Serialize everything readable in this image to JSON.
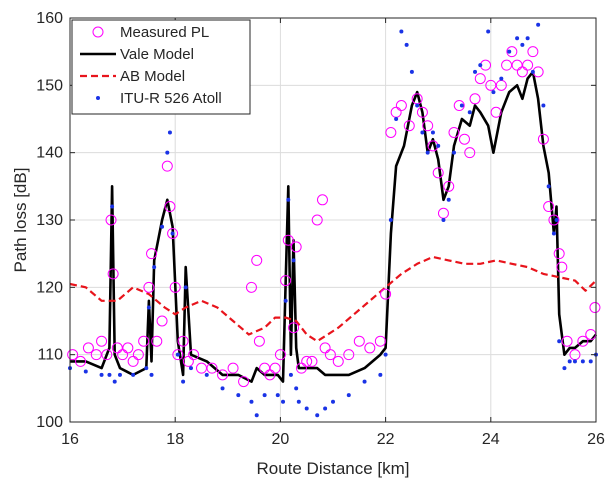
{
  "chart_data": {
    "type": "line",
    "xlabel": "Route Distance [km]",
    "ylabel": "Path loss [dB]",
    "xlim": [
      16,
      26
    ],
    "ylim": [
      100,
      160
    ],
    "x_ticks": [
      16,
      18,
      20,
      22,
      24,
      26
    ],
    "y_ticks": [
      100,
      110,
      120,
      130,
      140,
      150,
      160
    ],
    "x_tick_labels": [
      "16",
      "18",
      "20",
      "22",
      "24",
      "26"
    ],
    "y_tick_labels": [
      "100",
      "110",
      "120",
      "130",
      "140",
      "150",
      "160"
    ],
    "grid": true,
    "legend_position": "top-left",
    "legend": [
      "Measured PL",
      "Vale Model",
      "AB Model",
      "ITU-R 526 Atoll"
    ],
    "series": [
      {
        "name": "Measured PL",
        "style": "circle-markers",
        "color": "#ff00ff",
        "x": [
          16.05,
          16.2,
          16.35,
          16.5,
          16.6,
          16.7,
          16.78,
          16.82,
          16.9,
          17.0,
          17.1,
          17.2,
          17.3,
          17.4,
          17.5,
          17.55,
          17.65,
          17.75,
          17.85,
          17.9,
          17.95,
          18.0,
          18.05,
          18.15,
          18.25,
          18.35,
          18.5,
          18.7,
          18.9,
          19.1,
          19.3,
          19.45,
          19.55,
          19.6,
          19.7,
          19.8,
          19.9,
          20.0,
          20.1,
          20.15,
          20.25,
          20.3,
          20.4,
          20.5,
          20.6,
          20.7,
          20.8,
          20.85,
          20.95,
          21.1,
          21.3,
          21.5,
          21.7,
          21.9,
          22.0,
          22.1,
          22.2,
          22.3,
          22.45,
          22.6,
          22.7,
          22.8,
          22.9,
          23.0,
          23.1,
          23.2,
          23.3,
          23.4,
          23.5,
          23.6,
          23.7,
          23.8,
          23.9,
          24.0,
          24.1,
          24.2,
          24.3,
          24.4,
          24.5,
          24.6,
          24.7,
          24.8,
          24.9,
          25.0,
          25.1,
          25.2,
          25.3,
          25.35,
          25.45,
          25.6,
          25.75,
          25.9,
          25.98
        ],
        "y": [
          110,
          109,
          111,
          110,
          112,
          110,
          130,
          122,
          111,
          110,
          111,
          109,
          110,
          112,
          120,
          125,
          112,
          115,
          138,
          132,
          128,
          120,
          110,
          112,
          109,
          110,
          108,
          108,
          107,
          108,
          106,
          120,
          124,
          112,
          108,
          107,
          108,
          110,
          121,
          127,
          114,
          126,
          108,
          109,
          109,
          130,
          133,
          111,
          110,
          109,
          110,
          112,
          111,
          112,
          119,
          143,
          146,
          147,
          144,
          148,
          146,
          144,
          141,
          137,
          131,
          135,
          143,
          147,
          142,
          140,
          148,
          151,
          153,
          150,
          146,
          150,
          153,
          155,
          153,
          152,
          153,
          155,
          152,
          142,
          132,
          130,
          125,
          123,
          112,
          110,
          112,
          113,
          117
        ]
      },
      {
        "name": "Vale Model",
        "style": "solid-line",
        "color": "#000000",
        "x": [
          16.0,
          16.3,
          16.6,
          16.75,
          16.8,
          16.85,
          16.95,
          17.2,
          17.45,
          17.5,
          17.55,
          17.6,
          17.75,
          17.85,
          17.95,
          18.05,
          18.15,
          18.2,
          18.3,
          18.6,
          18.9,
          19.2,
          19.45,
          19.55,
          19.7,
          19.95,
          20.05,
          20.1,
          20.15,
          20.2,
          20.25,
          20.3,
          20.35,
          20.5,
          20.7,
          20.85,
          21.0,
          21.3,
          21.6,
          21.9,
          22.0,
          22.1,
          22.2,
          22.35,
          22.5,
          22.6,
          22.7,
          22.8,
          22.9,
          23.0,
          23.1,
          23.2,
          23.3,
          23.45,
          23.6,
          23.7,
          23.8,
          23.95,
          24.05,
          24.2,
          24.35,
          24.5,
          24.6,
          24.7,
          24.8,
          24.9,
          25.0,
          25.1,
          25.2,
          25.25,
          25.3,
          25.4,
          25.5,
          25.6,
          25.75,
          25.9,
          26.0
        ],
        "y": [
          109,
          109,
          108,
          111,
          135,
          110,
          108,
          107,
          108,
          118,
          109,
          124,
          130,
          133,
          129,
          112,
          107,
          123,
          110,
          109,
          107,
          107,
          106,
          108,
          107,
          107,
          106,
          121,
          135,
          110,
          127,
          111,
          108,
          108,
          108,
          107,
          107,
          107,
          108,
          110,
          111,
          128,
          138,
          141,
          147,
          149,
          146,
          140,
          142,
          139,
          133,
          135,
          141,
          145,
          144,
          147,
          146,
          144,
          140,
          146,
          149,
          150,
          148,
          151,
          152,
          148,
          141,
          137,
          128,
          132,
          116,
          110,
          111,
          111,
          112,
          112,
          113
        ]
      },
      {
        "name": "AB Model",
        "style": "dashed-line",
        "color": "#e8141c",
        "x": [
          16.0,
          16.3,
          16.6,
          16.9,
          17.2,
          17.5,
          17.8,
          18.0,
          18.2,
          18.5,
          18.8,
          19.1,
          19.4,
          19.7,
          19.9,
          20.1,
          20.3,
          20.5,
          20.7,
          20.9,
          21.1,
          21.4,
          21.7,
          22.0,
          22.3,
          22.6,
          22.9,
          23.2,
          23.5,
          23.8,
          24.1,
          24.4,
          24.7,
          25.0,
          25.3,
          25.6,
          25.8,
          26.0
        ],
        "y": [
          120.5,
          120,
          118,
          118,
          120,
          119,
          117,
          116,
          117,
          118,
          117,
          115,
          113,
          114,
          115.5,
          115.5,
          115,
          113,
          112,
          113,
          114,
          116,
          118,
          120,
          122,
          123.5,
          124.5,
          124,
          123.5,
          123.5,
          124,
          123.5,
          123,
          122,
          121.5,
          121,
          119.5,
          121
        ]
      },
      {
        "name": "ITU-R 526 Atoll",
        "style": "dot-markers",
        "color": "#1a33e6",
        "x": [
          16.0,
          16.3,
          16.6,
          16.75,
          16.8,
          16.85,
          16.95,
          17.2,
          17.45,
          17.5,
          17.55,
          17.6,
          17.75,
          17.85,
          17.9,
          17.95,
          18.05,
          18.15,
          18.2,
          18.3,
          18.6,
          18.9,
          19.2,
          19.45,
          19.55,
          19.7,
          19.95,
          20.05,
          20.1,
          20.15,
          20.2,
          20.25,
          20.3,
          20.35,
          20.5,
          20.7,
          20.85,
          21.0,
          21.3,
          21.6,
          21.9,
          22.0,
          22.1,
          22.2,
          22.3,
          22.4,
          22.5,
          22.6,
          22.7,
          22.8,
          22.9,
          23.0,
          23.1,
          23.2,
          23.3,
          23.45,
          23.6,
          23.7,
          23.8,
          23.95,
          24.05,
          24.2,
          24.35,
          24.5,
          24.6,
          24.7,
          24.8,
          24.9,
          25.0,
          25.1,
          25.2,
          25.25,
          25.3,
          25.4,
          25.5,
          25.6,
          25.75,
          25.9,
          26.0
        ],
        "y": [
          108,
          107.5,
          107,
          107,
          132,
          106,
          107,
          107,
          108,
          117,
          107,
          123,
          129,
          140,
          143,
          128,
          110,
          106,
          120,
          108,
          107,
          105,
          104,
          103,
          101,
          104,
          104,
          103,
          118,
          133,
          107,
          124,
          105,
          103,
          102,
          101,
          102,
          103,
          104,
          106,
          107,
          110,
          130,
          145,
          158,
          156,
          152,
          147,
          143,
          140,
          143,
          141,
          130,
          133,
          140,
          147,
          146,
          152,
          153,
          158,
          149,
          151,
          155,
          157,
          156,
          157,
          152,
          159,
          147,
          135,
          128,
          130,
          112,
          108,
          109,
          109,
          109,
          109,
          110
        ]
      }
    ]
  }
}
